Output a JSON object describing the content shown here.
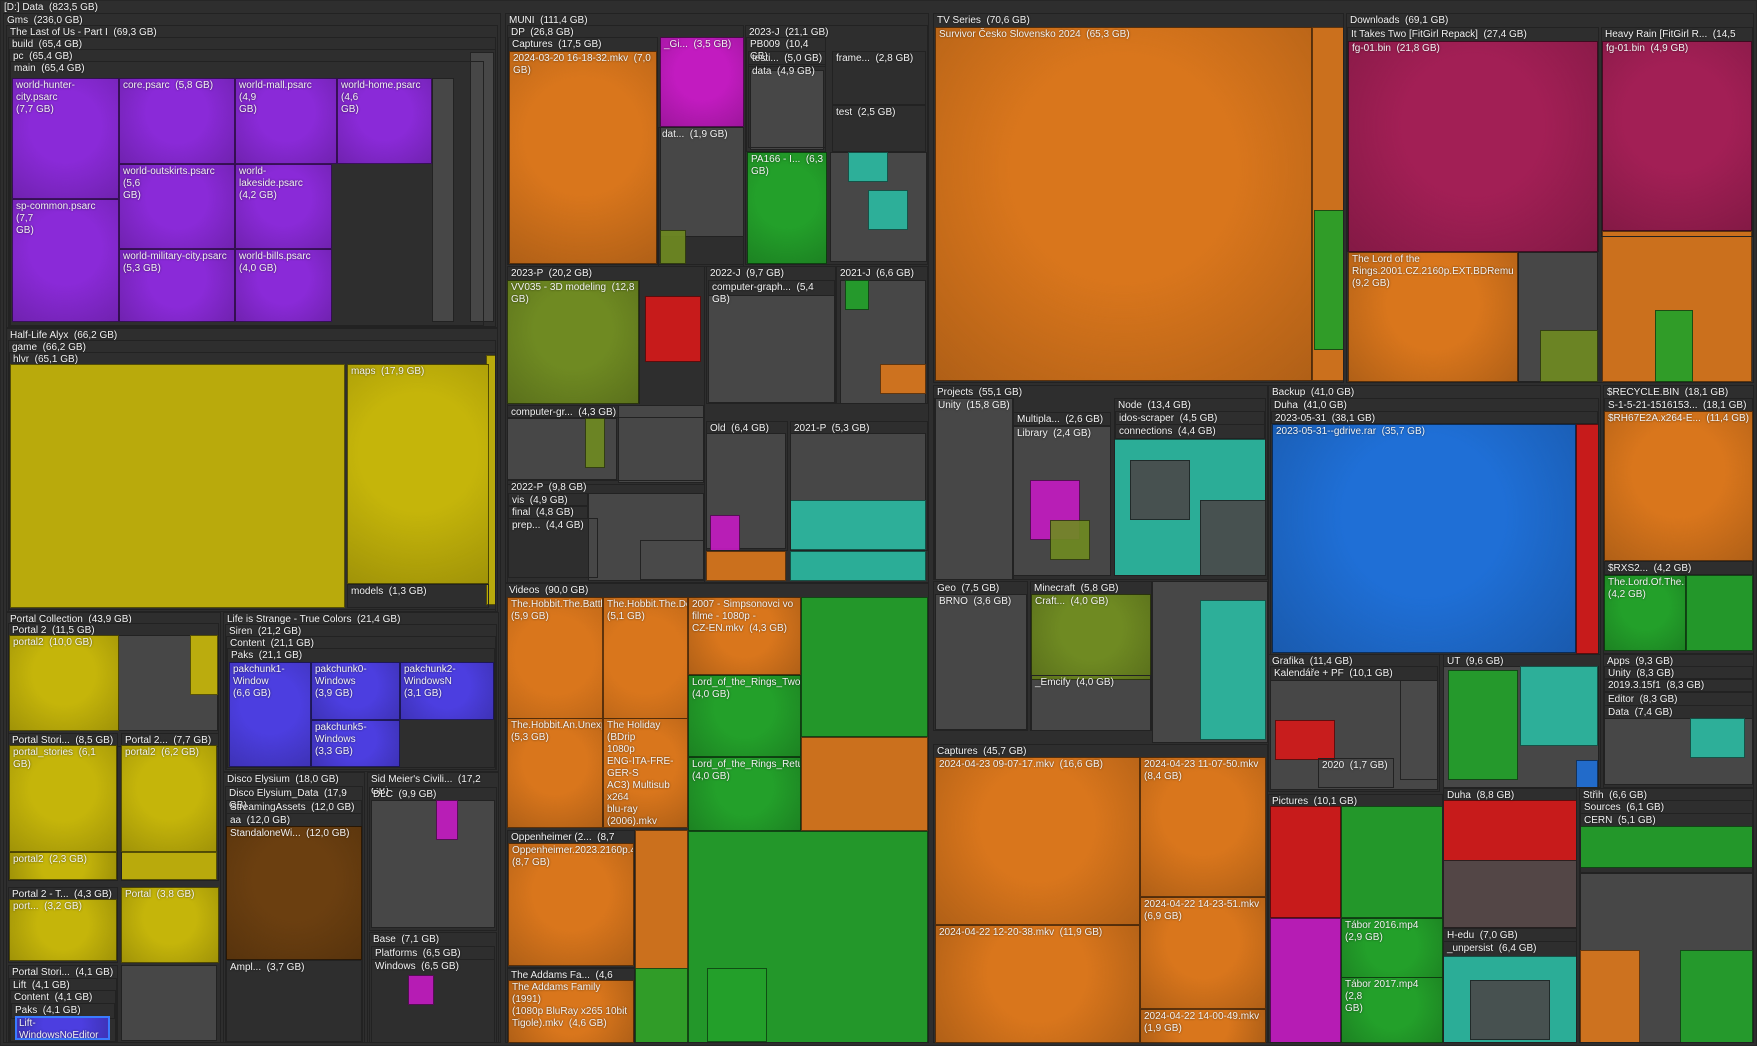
{
  "app": {
    "name": "treemap disk usage view"
  },
  "colors": {
    "orange": "#d9761c",
    "purple": "#8a2ad8",
    "yellow": "#c5b50a",
    "green": "#23a02a",
    "blue": "#1f6fd6",
    "red": "#d41a1a",
    "magenta": "#c21bc0",
    "teal": "#2bb8a0",
    "olive": "#6f8a22",
    "brown": "#6b3f10",
    "crimson": "#a21f55",
    "indigo": "#4c3ee0",
    "gray": "#4a4a4a",
    "dir": "#3c3c3c"
  },
  "root": {
    "label": "[D:] Data  (823,5 GB)"
  },
  "tiles": [
    {
      "label": "Gms  (236,0 GB)",
      "icon": "folder-icon"
    },
    {
      "label": "The Last of Us - Part I  (69,3 GB)",
      "icon": "folder-icon"
    },
    {
      "label": "build  (65,4 GB)"
    },
    {
      "label": "pc  (65,4 GB)"
    },
    {
      "label": "main  (65,4 GB)"
    },
    {
      "label": "world-hunter-city.psarc\n(7,7 GB)"
    },
    {
      "label": "core.psarc  (5,8 GB)"
    },
    {
      "label": "world-mall.psarc  (4,9\nGB)"
    },
    {
      "label": "world-home.psarc  (4,6\nGB)"
    },
    {
      "label": "world-outskirts.psarc  (5,6\nGB)"
    },
    {
      "label": "world-lakeside.psarc\n(4,2 GB)"
    },
    {
      "label": "sp-common.psarc  (7,7\nGB)"
    },
    {
      "label": "world-military-city.psarc\n(5,3 GB)"
    },
    {
      "label": "world-bills.psarc\n(4,0 GB)"
    },
    {
      "label": "Half-Life Alyx  (66,2 GB)"
    },
    {
      "label": "game  (66,2 GB)"
    },
    {
      "label": "hlvr  (65,1 GB)"
    },
    {
      "label": "maps  (17,9 GB)"
    },
    {
      "label": "models  (1,3 GB)"
    },
    {
      "label": "Portal Collection  (43,9 GB)"
    },
    {
      "label": "Portal 2  (11,5 GB)"
    },
    {
      "label": "portal2  (10,0 GB)"
    },
    {
      "label": "Portal Stori...  (8,5 GB)"
    },
    {
      "label": "portal_stories  (6,1 GB)"
    },
    {
      "label": "Portal 2...  (7,7 GB)"
    },
    {
      "label": "portal2  (6,2 GB)"
    },
    {
      "label": "portal2  (2,3 GB)"
    },
    {
      "label": "Portal 2 - T...  (4,3 GB)"
    },
    {
      "label": "port...  (3,2 GB)"
    },
    {
      "label": "Portal  (3,8 GB)"
    },
    {
      "label": "Portal Stori...  (4,1 GB)"
    },
    {
      "label": "Lift  (4,1 GB)"
    },
    {
      "label": "Content  (4,1 GB)"
    },
    {
      "label": "Paks  (4,1 GB)"
    },
    {
      "label": "Lift-WindowsNoEditor\n(4,1 GB)"
    },
    {
      "label": "Life is Strange - True Colors  (21,4 GB)"
    },
    {
      "label": "Siren  (21,2 GB)"
    },
    {
      "label": "Content  (21,1 GB)"
    },
    {
      "label": "Paks  (21,1 GB)"
    },
    {
      "label": "pakchunk1-Window\n(6,6 GB)"
    },
    {
      "label": "pakchunk0-Windows\n(3,9 GB)"
    },
    {
      "label": "pakchunk2-WindowsN\n(3,1 GB)"
    },
    {
      "label": "pakchunk5-Windows\n(3,3 GB)"
    },
    {
      "label": "Disco Elysium  (18,0 GB)"
    },
    {
      "label": "Disco Elysium_Data  (17,9 GB)"
    },
    {
      "label": "StreamingAssets  (12,0 GB)"
    },
    {
      "label": "aa  (12,0 GB)"
    },
    {
      "label": "StandaloneWi...  (12,0 GB)"
    },
    {
      "label": "Ampl...  (3,7 GB)"
    },
    {
      "label": "Sid Meier's Civili...  (17,2 GB)"
    },
    {
      "label": "DLC  (9,9 GB)"
    },
    {
      "label": "Base  (7,1 GB)"
    },
    {
      "label": "Platforms  (6,5 GB)"
    },
    {
      "label": "Windows  (6,5 GB)"
    },
    {
      "label": "MUNI  (111,4 GB)"
    },
    {
      "label": "DP  (26,8 GB)"
    },
    {
      "label": "Captures  (17,5 GB)"
    },
    {
      "label": "2024-03-20 16-18-32.mkv  (7,0 GB)"
    },
    {
      "label": "_Gi...  (3,5 GB)"
    },
    {
      "label": "dat...  (1,9 GB)"
    },
    {
      "label": "2023-J  (21,1 GB)"
    },
    {
      "label": "PB009  (10,4 GB)"
    },
    {
      "label": "testi...  (5,0 GB)"
    },
    {
      "label": "data  (4,9 GB)"
    },
    {
      "label": "frame...  (2,8 GB)"
    },
    {
      "label": "test  (2,5 GB)"
    },
    {
      "label": "PA166 - I...  (6,3 GB)"
    },
    {
      "label": "2023-P  (20,2 GB)"
    },
    {
      "label": "VV035 - 3D modeling  (12,8 GB)"
    },
    {
      "label": "2022-J  (9,7 GB)"
    },
    {
      "label": "computer-graph...  (5,4 GB)"
    },
    {
      "label": "2021-J  (6,6 GB)"
    },
    {
      "label": "computer-gr...  (4,3 GB)"
    },
    {
      "label": "Old  (6,4 GB)"
    },
    {
      "label": "2021-P  (5,3 GB)"
    },
    {
      "label": "2022-P  (9,8 GB)"
    },
    {
      "label": "vis  (4,9 GB)"
    },
    {
      "label": "final  (4,8 GB)"
    },
    {
      "label": "prep...  (4,4 GB)"
    },
    {
      "label": "Videos  (90,0 GB)"
    },
    {
      "label": "The.Hobbit.The.Battle.of\n(5,9 GB)"
    },
    {
      "label": "The.Hobbit.The.Deso\n(5,1 GB)"
    },
    {
      "label": "2007 - Simpsonovci vo\nfilme - 1080p -\nCZ-EN.mkv  (4,3 GB)"
    },
    {
      "label": "Lord_of_the_Rings_Two_to\n(4,0 GB)"
    },
    {
      "label": "The.Hobbit.An.Unexpect\n(5,3 GB)"
    },
    {
      "label": "The Holiday (BDrip\n1080p\nENG-ITA-FRE-GER-S\nAC3) Multisub x264\nblu-ray (2006).mkv\n(4,4 GB)"
    },
    {
      "label": "Lord_of_the_Rings_Return_\n(4,0 GB)"
    },
    {
      "label": "Oppenheimer (2...  (8,7 GB)"
    },
    {
      "label": "Oppenheimer.2023.2160p.4K.B\n(8,7 GB)"
    },
    {
      "label": "The Addams Fa...  (4,6 GB)"
    },
    {
      "label": "The Addams Family (1991)\n(1080p BluRay x265 10bit\nTigole).mkv  (4,6 GB)"
    },
    {
      "label": "TV Series  (70,6 GB)"
    },
    {
      "label": "Survivor Česko Slovensko 2024  (65,3 GB)"
    },
    {
      "label": "Downloads  (69,1 GB)"
    },
    {
      "label": "It Takes Two [FitGirl Repack]  (27,4 GB)"
    },
    {
      "label": "fg-01.bin  (21,8 GB)"
    },
    {
      "label": "The Lord of the\nRings.2001.CZ.2160p.EXT.BDRemu\n(9,2 GB)"
    },
    {
      "label": "Heavy Rain [FitGirl R...  (14,5 GB)"
    },
    {
      "label": "fg-01.bin  (4,9 GB)"
    },
    {
      "label": "Projects  (55,1 GB)"
    },
    {
      "label": "Unity  (15,8 GB)"
    },
    {
      "label": "Multipla...  (2,6 GB)"
    },
    {
      "label": "Library  (2,4 GB)"
    },
    {
      "label": "Node  (13,4 GB)"
    },
    {
      "label": "idos-scraper  (4,5 GB)"
    },
    {
      "label": "connections  (4,4 GB)"
    },
    {
      "label": "Geo  (7,5 GB)"
    },
    {
      "label": "BRNO  (3,6 GB)"
    },
    {
      "label": "Minecraft  (5,8 GB)"
    },
    {
      "label": "Craft...  (4,0 GB)"
    },
    {
      "label": "_Emcify  (4,0 GB)"
    },
    {
      "label": "Captures  (45,7 GB)"
    },
    {
      "label": "2024-04-23 09-07-17.mkv  (16,6 GB)"
    },
    {
      "label": "2024-04-23 11-07-50.mkv\n(8,4 GB)"
    },
    {
      "label": "2024-04-22 14-23-51.mkv\n(6,9 GB)"
    },
    {
      "label": "2024-04-22 12-20-38.mkv  (11,9 GB)"
    },
    {
      "label": "2024-04-22 14-00-49.mkv\n(1,9 GB)"
    },
    {
      "label": "Backup  (41,0 GB)"
    },
    {
      "label": "Duha  (41,0 GB)"
    },
    {
      "label": "2023-05-31  (38,1 GB)"
    },
    {
      "label": "2023-05-31--gdrive.rar  (35,7 GB)"
    },
    {
      "label": "$RECYCLE.BIN  (18,1 GB)"
    },
    {
      "label": "S-1-5-21-1516153...  (18,1 GB)"
    },
    {
      "label": "$RH67E2A.x264-E...  (11,4 GB)"
    },
    {
      "label": "$RXS2...  (4,2 GB)"
    },
    {
      "label": "The.Lord.Of.The.Ring\n(4,2 GB)"
    },
    {
      "label": "Grafika  (11,4 GB)"
    },
    {
      "label": "Kalendáře + PF  (10,1 GB)"
    },
    {
      "label": "2020  (1,7 GB)"
    },
    {
      "label": "UT  (9,6 GB)"
    },
    {
      "label": "Apps  (9,3 GB)"
    },
    {
      "label": "Unity  (8,3 GB)"
    },
    {
      "label": "2019.3.15f1  (8,3 GB)"
    },
    {
      "label": "Editor  (8,3 GB)"
    },
    {
      "label": "Data  (7,4 GB)"
    },
    {
      "label": "Pictures  (10,1 GB)"
    },
    {
      "label": "Tábor 2016.mp4  (2,9 GB)"
    },
    {
      "label": "Tábor 2017.mp4  (2,8\nGB)"
    },
    {
      "label": "Duha  (8,8 GB)"
    },
    {
      "label": "H-edu  (7,0 GB)"
    },
    {
      "label": "_unpersist  (6,4 GB)"
    },
    {
      "label": "Střih  (6,6 GB)"
    },
    {
      "label": "Sources  (6,1 GB)"
    },
    {
      "label": "CERN  (5,1 GB)"
    }
  ]
}
